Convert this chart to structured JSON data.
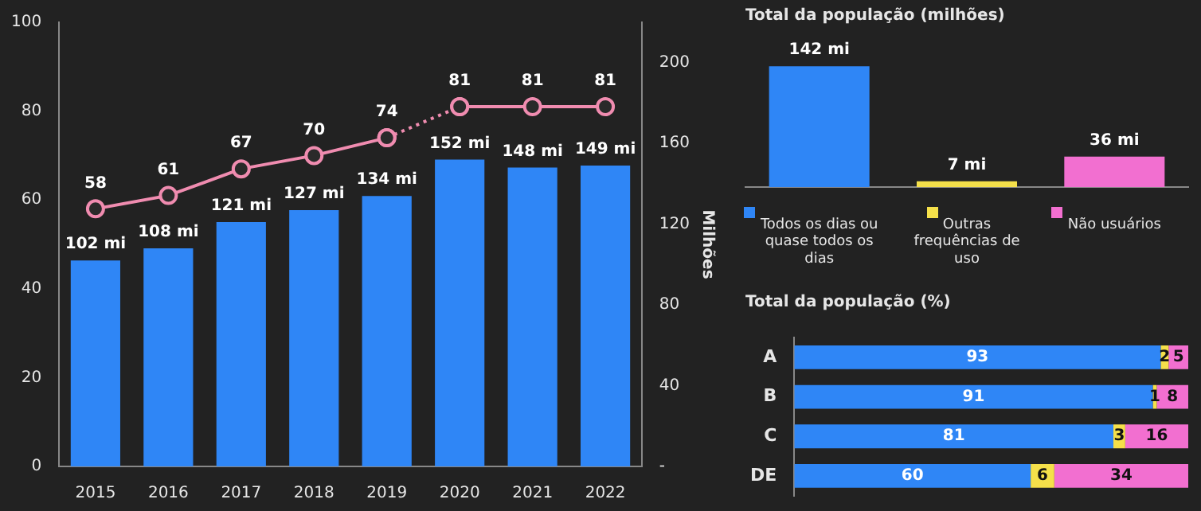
{
  "chart_data": [
    {
      "type": "bar",
      "categories": [
        "2015",
        "2016",
        "2017",
        "2018",
        "2019",
        "2020",
        "2021",
        "2022"
      ],
      "ylim": [
        0,
        100
      ],
      "yticks": [
        0,
        20,
        40,
        60,
        80,
        100
      ],
      "y2lim": [
        0,
        220
      ],
      "y2ticks": [
        {
          "value": 0,
          "label": "-"
        },
        40,
        80,
        120,
        160,
        200
      ],
      "y2label": "Milhões",
      "grid": false,
      "marker": "circle",
      "series": [
        {
          "type": "bar",
          "axis": "y2",
          "color": "#2f86f6",
          "values": [
            102,
            108,
            121,
            127,
            134,
            152,
            148,
            149
          ],
          "value_labels": [
            "102 mi",
            "108 mi",
            "121 mi",
            "127 mi",
            "134 mi",
            "152 mi",
            "148 mi",
            "149 mi"
          ]
        },
        {
          "type": "line",
          "color": "#f08cb0",
          "line_style": "solid",
          "values": [
            58,
            61,
            67,
            70,
            74,
            null,
            null,
            null
          ],
          "value_labels": [
            "58",
            "61",
            "67",
            "70",
            "74",
            null,
            null,
            null
          ]
        },
        {
          "type": "line",
          "color": "#f08cb0",
          "line_style": "dotted",
          "values": [
            null,
            null,
            null,
            null,
            74,
            81,
            null,
            null
          ]
        },
        {
          "type": "line",
          "color": "#f08cb0",
          "line_style": "solid",
          "values": [
            null,
            null,
            null,
            null,
            null,
            81,
            81,
            81
          ],
          "value_labels": [
            null,
            null,
            null,
            null,
            null,
            "81",
            "81",
            "81"
          ]
        }
      ]
    },
    {
      "type": "bar",
      "title": "Total da população (milhões)",
      "categories": [
        "Todos os dias ou quase todos os dias",
        "Outras frequências de uso",
        "Não usuários"
      ],
      "series": [
        {
          "colors": [
            "#2f86f6",
            "#f5e04a",
            "#f26fd0"
          ],
          "values": [
            142,
            7,
            36
          ],
          "value_labels": [
            "142 mi",
            "7 mi",
            "36 mi"
          ]
        }
      ]
    },
    {
      "type": "bar",
      "title": "Total da população (%)",
      "orientation": "horizontal",
      "stacked": true,
      "data_labels": true,
      "categories": [
        "A",
        "B",
        "C",
        "DE"
      ],
      "series": [
        {
          "color": "#2f86f6",
          "values": [
            93,
            91,
            81,
            60
          ]
        },
        {
          "color": "#f5e04a",
          "values": [
            2,
            1,
            3,
            6
          ]
        },
        {
          "color": "#f26fd0",
          "values": [
            5,
            8,
            16,
            34
          ]
        }
      ]
    }
  ]
}
